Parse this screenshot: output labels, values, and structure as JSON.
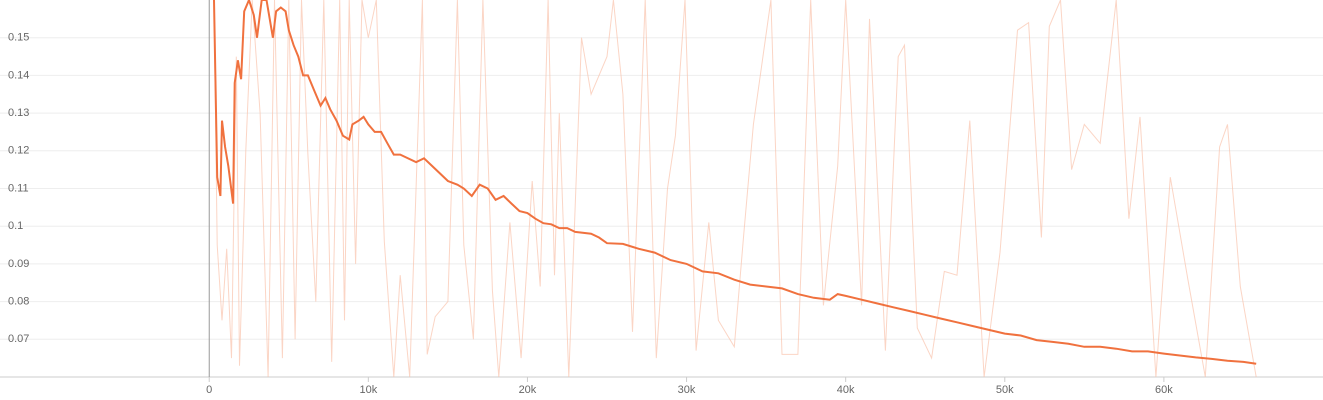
{
  "chart_data": {
    "type": "line",
    "xlim": [
      -13150,
      70000
    ],
    "ylim": [
      0.06,
      0.16
    ],
    "xticks": [
      {
        "value": 0,
        "label": "0"
      },
      {
        "value": 10000,
        "label": "10k"
      },
      {
        "value": 20000,
        "label": "20k"
      },
      {
        "value": 30000,
        "label": "30k"
      },
      {
        "value": 40000,
        "label": "40k"
      },
      {
        "value": 50000,
        "label": "50k"
      },
      {
        "value": 60000,
        "label": "60k"
      }
    ],
    "yticks": [
      0.07,
      0.08,
      0.09,
      0.1,
      0.11,
      0.12,
      0.13,
      0.14,
      0.15
    ],
    "grid": true,
    "series": [
      {
        "color": "#f9c3ad",
        "faint": true,
        "x": [
          300,
          500,
          800,
          1100,
          1400,
          1700,
          1900,
          2300,
          2700,
          3200,
          3700,
          4100,
          4600,
          5000,
          5400,
          5800,
          6200,
          6700,
          7200,
          7700,
          8200,
          8500,
          8800,
          9200,
          9600,
          10000,
          10500,
          11000,
          11600,
          12000,
          12600,
          13400,
          13700,
          14200,
          15000,
          15600,
          16000,
          16600,
          17200,
          17800,
          18200,
          18900,
          19600,
          20300,
          20800,
          21300,
          21700,
          22000,
          22600,
          23400,
          24000,
          25000,
          25400,
          26000,
          26600,
          27400,
          28100,
          28800,
          29300,
          29900,
          30600,
          31400,
          32000,
          33000,
          33600,
          34200,
          35300,
          36000,
          37000,
          37800,
          38600,
          39500,
          40000,
          41000,
          41500,
          42500,
          43300,
          43700,
          44500,
          45400,
          46200,
          47000,
          47800,
          48700,
          49700,
          50800,
          51500,
          52300,
          52800,
          53500,
          54200,
          55000,
          56000,
          57000,
          57800,
          58500,
          59500,
          60400,
          61500,
          62600,
          63500,
          64000,
          64800,
          65800
        ],
        "values": [
          0.16,
          0.095,
          0.075,
          0.094,
          0.065,
          0.145,
          0.063,
          0.12,
          0.16,
          0.13,
          0.06,
          0.16,
          0.065,
          0.16,
          0.07,
          0.16,
          0.119,
          0.08,
          0.16,
          0.064,
          0.16,
          0.075,
          0.16,
          0.09,
          0.16,
          0.15,
          0.16,
          0.096,
          0.06,
          0.087,
          0.06,
          0.16,
          0.066,
          0.076,
          0.08,
          0.16,
          0.095,
          0.07,
          0.16,
          0.083,
          0.06,
          0.101,
          0.065,
          0.112,
          0.084,
          0.16,
          0.087,
          0.13,
          0.06,
          0.15,
          0.135,
          0.145,
          0.16,
          0.135,
          0.072,
          0.16,
          0.065,
          0.11,
          0.124,
          0.16,
          0.067,
          0.101,
          0.075,
          0.068,
          0.098,
          0.127,
          0.16,
          0.066,
          0.066,
          0.16,
          0.079,
          0.116,
          0.16,
          0.079,
          0.155,
          0.067,
          0.145,
          0.148,
          0.073,
          0.065,
          0.088,
          0.087,
          0.128,
          0.06,
          0.093,
          0.152,
          0.154,
          0.097,
          0.153,
          0.16,
          0.115,
          0.127,
          0.122,
          0.16,
          0.102,
          0.129,
          0.06,
          0.113,
          0.086,
          0.06,
          0.121,
          0.127,
          0.084,
          0.06
        ]
      },
      {
        "color": "#f0713e",
        "faint": false,
        "x": [
          300,
          500,
          700,
          800,
          1000,
          1200,
          1500,
          1600,
          1800,
          2000,
          2200,
          2500,
          2800,
          3000,
          3300,
          3600,
          4000,
          4200,
          4500,
          4800,
          5000,
          5300,
          5600,
          5900,
          6200,
          6600,
          7000,
          7300,
          7600,
          8000,
          8400,
          8800,
          9000,
          9400,
          9700,
          10000,
          10400,
          10800,
          11200,
          11600,
          12000,
          13000,
          13500,
          14000,
          14500,
          15000,
          15600,
          16000,
          16500,
          17000,
          17500,
          18000,
          18500,
          19000,
          19500,
          20000,
          20500,
          21000,
          21500,
          22000,
          22500,
          23000,
          24000,
          24500,
          25000,
          26000,
          27000,
          28000,
          29000,
          30000,
          31000,
          32000,
          33000,
          34000,
          35000,
          36000,
          37000,
          38000,
          39000,
          39500,
          40000,
          41000,
          42000,
          43000,
          44000,
          45000,
          46000,
          47000,
          48000,
          49000,
          50000,
          51000,
          52000,
          53000,
          54000,
          55000,
          56000,
          57000,
          58000,
          59000,
          60000,
          61000,
          62000,
          63000,
          64000,
          65000,
          65800
        ],
        "values": [
          0.16,
          0.113,
          0.108,
          0.128,
          0.121,
          0.116,
          0.106,
          0.138,
          0.144,
          0.139,
          0.157,
          0.16,
          0.156,
          0.15,
          0.16,
          0.16,
          0.15,
          0.157,
          0.158,
          0.157,
          0.152,
          0.148,
          0.145,
          0.14,
          0.14,
          0.136,
          0.132,
          0.134,
          0.131,
          0.128,
          0.124,
          0.123,
          0.127,
          0.128,
          0.129,
          0.127,
          0.125,
          0.125,
          0.122,
          0.119,
          0.119,
          0.117,
          0.118,
          0.116,
          0.114,
          0.112,
          0.111,
          0.11,
          0.108,
          0.111,
          0.11,
          0.107,
          0.108,
          0.106,
          0.104,
          0.1035,
          0.102,
          0.1008,
          0.1005,
          0.0995,
          0.0995,
          0.0985,
          0.098,
          0.097,
          0.0955,
          0.0953,
          0.094,
          0.093,
          0.091,
          0.09,
          0.088,
          0.0875,
          0.0858,
          0.0845,
          0.084,
          0.0835,
          0.082,
          0.081,
          0.0805,
          0.082,
          0.0815,
          0.0805,
          0.0795,
          0.0785,
          0.0775,
          0.0765,
          0.0755,
          0.0745,
          0.0735,
          0.0725,
          0.0715,
          0.071,
          0.0698,
          0.0693,
          0.0688,
          0.068,
          0.068,
          0.0675,
          0.0668,
          0.0668,
          0.0662,
          0.0657,
          0.0652,
          0.0648,
          0.0643,
          0.064,
          0.0635
        ]
      }
    ]
  }
}
